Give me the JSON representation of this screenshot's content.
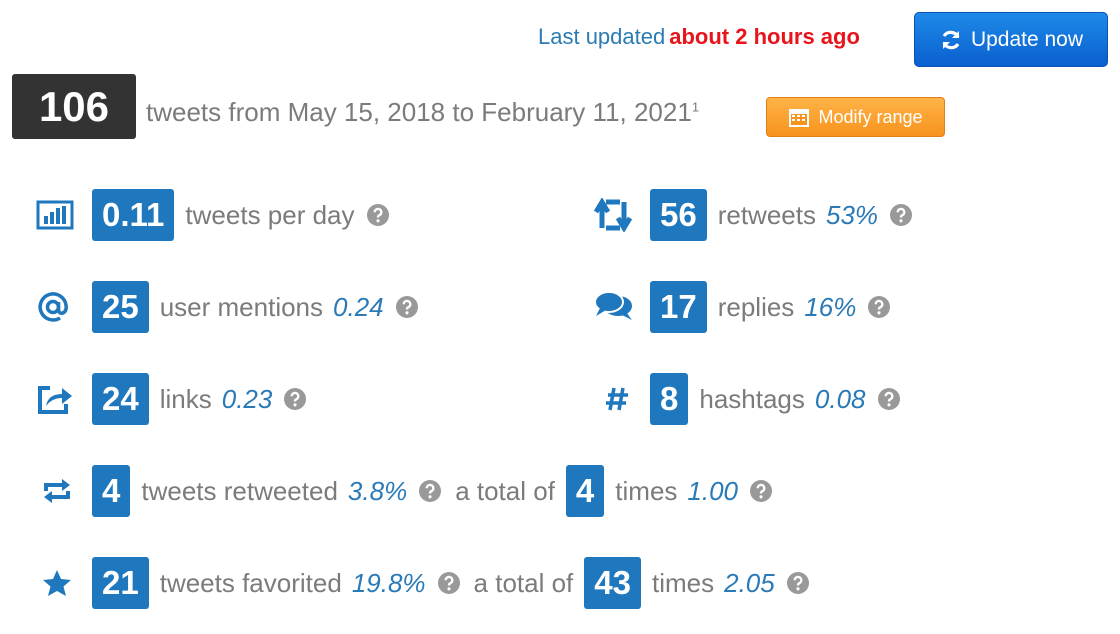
{
  "header": {
    "last_updated_label": "Last updated",
    "last_updated_value": "about 2 hours ago",
    "update_button": "Update now"
  },
  "summary": {
    "count": "106",
    "text": "tweets from May 15, 2018 to February 11, 2021",
    "footnote": "1",
    "modify_button": "Modify range"
  },
  "stats": {
    "tweets_per_day": {
      "value": "0.11",
      "label": "tweets per day"
    },
    "retweets": {
      "value": "56",
      "label": "retweets",
      "ratio": "53%"
    },
    "user_mentions": {
      "value": "25",
      "label": "user mentions",
      "ratio": "0.24"
    },
    "replies": {
      "value": "17",
      "label": "replies",
      "ratio": "16%"
    },
    "links": {
      "value": "24",
      "label": "links",
      "ratio": "0.23"
    },
    "hashtags": {
      "value": "8",
      "label": "hashtags",
      "ratio": "0.08"
    },
    "tweets_retweeted": {
      "value": "4",
      "label": "tweets retweeted",
      "ratio": "3.8%",
      "total_label": "a total of",
      "total": "4",
      "total_unit": "times",
      "per_tweet": "1.00"
    },
    "tweets_favorited": {
      "value": "21",
      "label": "tweets favorited",
      "ratio": "19.8%",
      "total_label": "a total of",
      "total": "43",
      "total_unit": "times",
      "per_tweet": "2.05"
    }
  }
}
